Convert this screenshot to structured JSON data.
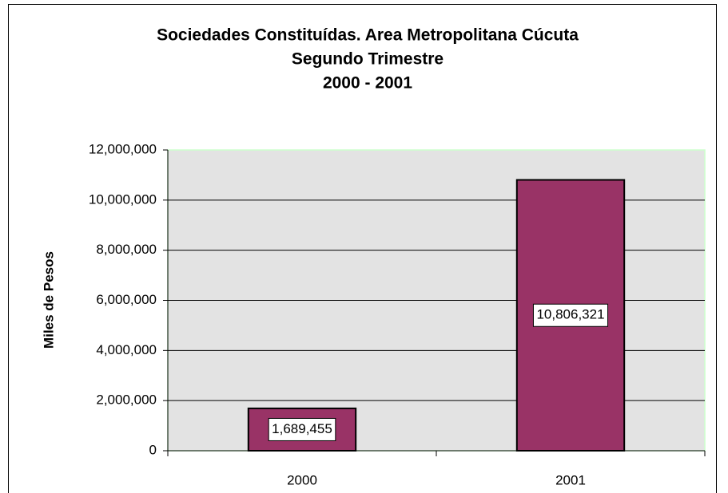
{
  "chart_data": {
    "type": "bar",
    "title": [
      "Sociedades Constituídas. Area Metropolitana Cúcuta",
      "Segundo Trimestre",
      "2000 - 2001"
    ],
    "y_label": "Miles de Pesos",
    "categories": [
      "2000",
      "2001"
    ],
    "values": [
      1689455,
      10806321
    ],
    "value_labels": [
      "1,689,455",
      "10,806,321"
    ],
    "color": "#993366",
    "ylim": [
      0,
      12000000
    ],
    "yticks": [
      0,
      {
        "value": 2000000,
        "label": "2,000,000"
      },
      {
        "value": 4000000,
        "label": "4,000,000"
      },
      {
        "value": 6000000,
        "label": "6,000,000"
      },
      {
        "value": 8000000,
        "label": "8,000,000"
      },
      {
        "value": 10000000,
        "label": "10,000,000"
      },
      {
        "value": 12000000,
        "label": "12,000,000"
      }
    ],
    "grid": true
  }
}
